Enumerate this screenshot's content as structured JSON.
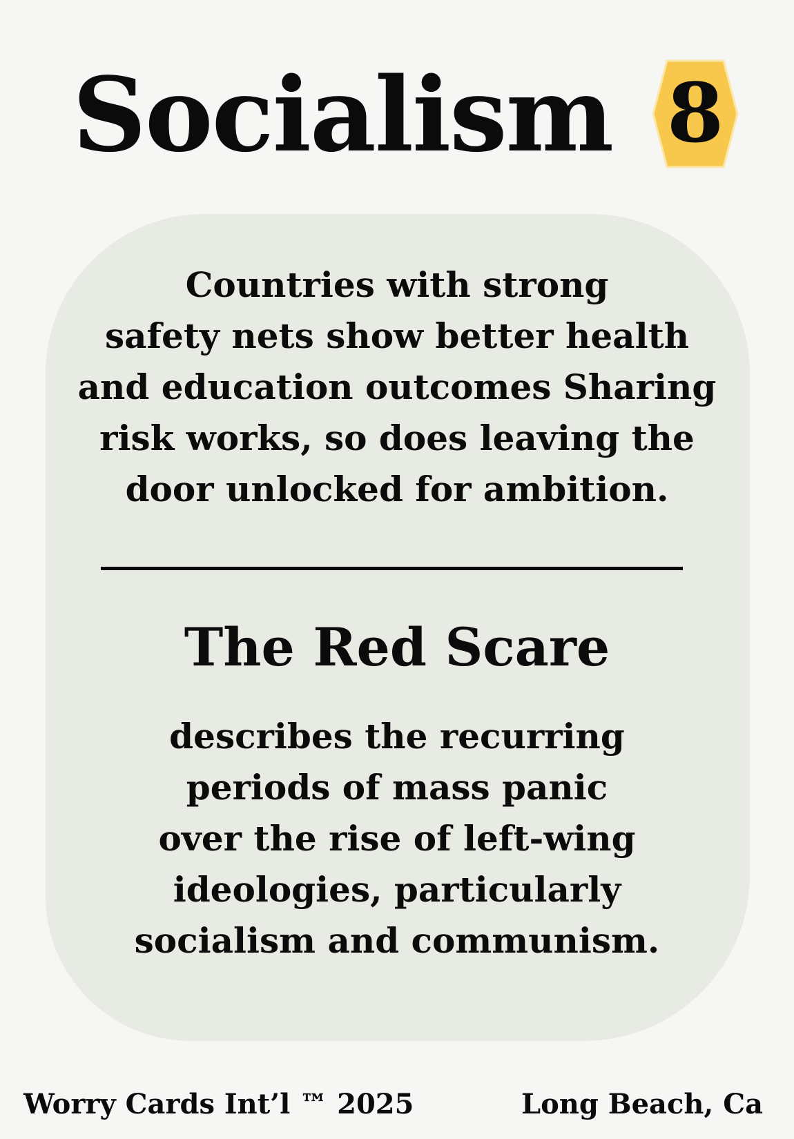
{
  "card": {
    "title": "Socialism",
    "number": "8",
    "badge_color": "#f7c84c",
    "panel_color": "#e8ebe3",
    "fact_lines": [
      "Countries with strong",
      "safety nets show better health",
      "and education outcomes Sharing",
      "risk works, so does leaving the",
      "door unlocked for ambition."
    ],
    "subheading": "The Red Scare",
    "description_lines": [
      "describes the recurring",
      "periods of mass panic",
      "over the rise of left-wing",
      "ideologies, particularly",
      "socialism and communism."
    ]
  },
  "footer": {
    "left": "Worry Cards Int’l ™ 2025",
    "right": "Long Beach, Ca"
  }
}
